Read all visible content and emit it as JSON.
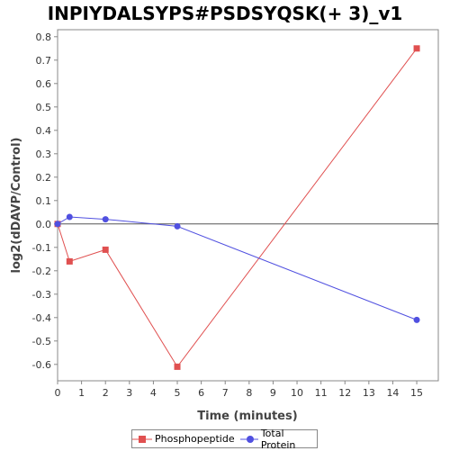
{
  "chart_data": {
    "type": "line",
    "title": "INPIYDALSYPS#PSDSYQSK(+ 3)_v1",
    "xlabel": "Time (minutes)",
    "ylabel": "log2(dDAVP/Control)",
    "xlim": [
      0,
      15.9
    ],
    "ylim": [
      -0.67,
      0.83
    ],
    "xticks": [
      0,
      1,
      2,
      3,
      4,
      5,
      6,
      7,
      8,
      9,
      10,
      11,
      12,
      13,
      14,
      15
    ],
    "yticks": [
      0.8,
      0.7,
      0.6,
      0.5,
      0.4,
      0.3,
      0.2,
      0.1,
      0.0,
      -0.1,
      -0.2,
      -0.3,
      -0.4,
      -0.5,
      -0.6
    ],
    "ytick_labels": [
      "0.8",
      "0.7",
      "0.6",
      "0.5",
      "0.4",
      "0.3",
      "0.2",
      "0.1",
      "0.0",
      "-0.1",
      "-0.2",
      "-0.3",
      "-0.4",
      "-0.5",
      "-0.6"
    ],
    "zero_line": true,
    "grid": false,
    "legend_position": "bottom",
    "series": [
      {
        "name": "Phosphopeptide",
        "color": "#e05050",
        "marker": "square",
        "x": [
          0,
          0.5,
          2,
          5,
          15
        ],
        "y": [
          0.0,
          -0.16,
          -0.11,
          -0.61,
          0.75
        ]
      },
      {
        "name": "Total Protein",
        "color": "#5050e0",
        "marker": "circle",
        "x": [
          0,
          0.5,
          2,
          5,
          15
        ],
        "y": [
          0.0,
          0.03,
          0.02,
          -0.01,
          -0.41
        ]
      }
    ]
  }
}
